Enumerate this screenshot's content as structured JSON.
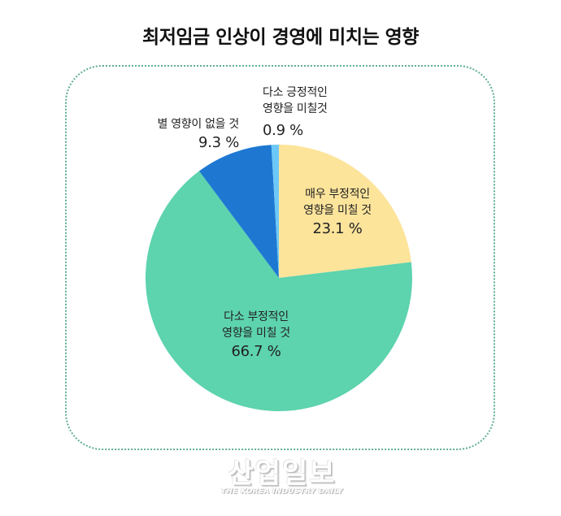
{
  "title": "최저임금 인상이 경영에 미치는 영향",
  "chart_data": {
    "type": "pie",
    "title": "최저임금 인상이 경영에 미치는 영향",
    "start_angle": "12 o'clock, clockwise",
    "slices": [
      {
        "label_line1": "매우 부정적인",
        "label_line2": "영향을 미칠 것",
        "value": 23.1,
        "value_label": "23.1 %",
        "color": "#FDE49B"
      },
      {
        "label_line1": "다소 부정적인",
        "label_line2": "영향을 미칠 것",
        "value": 66.7,
        "value_label": "66.7 %",
        "color": "#5DD3AE"
      },
      {
        "label_line1": "별 영향이 없을 것",
        "label_line2": "",
        "value": 9.3,
        "value_label": "9.3 %",
        "color": "#1E78D2"
      },
      {
        "label_line1": "다소 긍정적인",
        "label_line2": "영향을 미칠것",
        "value": 0.9,
        "value_label": "0.9 %",
        "color": "#6CC8F8"
      }
    ],
    "legend": "none (labels on/near slices)"
  },
  "frame_color": "#5fae8e",
  "watermark": {
    "korean": "산업일보",
    "english": "THE KOREA INDUSTRY DAILY"
  }
}
